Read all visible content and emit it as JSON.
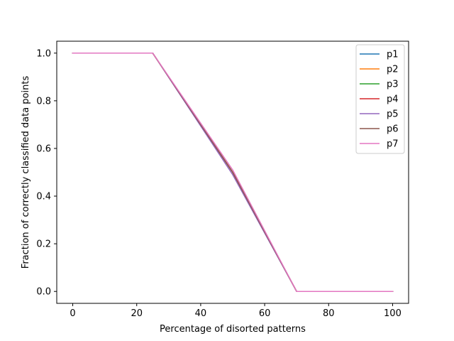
{
  "chart_data": {
    "type": "line",
    "title": "",
    "xlabel": "Percentage of disorted patterns",
    "ylabel": "Fraction of correctly classified data points",
    "xlim": [
      -5,
      105
    ],
    "ylim": [
      -0.05,
      1.05
    ],
    "xticks": [
      0,
      20,
      40,
      60,
      80,
      100
    ],
    "xtick_labels": [
      "0",
      "20",
      "40",
      "60",
      "80",
      "100"
    ],
    "yticks": [
      0.0,
      0.2,
      0.4,
      0.6,
      0.8,
      1.0
    ],
    "ytick_labels": [
      "0.0",
      "0.2",
      "0.4",
      "0.6",
      "0.8",
      "1.0"
    ],
    "grid": false,
    "legend_position": "top-right",
    "series": [
      {
        "name": "p1",
        "color": "#1f77b4",
        "x": [
          0,
          25,
          50,
          70,
          100
        ],
        "y": [
          1.0,
          1.0,
          0.5,
          0.0,
          0.0
        ]
      },
      {
        "name": "p2",
        "color": "#ff7f0e",
        "x": [
          0,
          25,
          50,
          70,
          100
        ],
        "y": [
          1.0,
          1.0,
          0.5,
          0.0,
          0.0
        ]
      },
      {
        "name": "p3",
        "color": "#2ca02c",
        "x": [
          0,
          25,
          50,
          70,
          100
        ],
        "y": [
          1.0,
          1.0,
          0.5,
          0.0,
          0.0
        ]
      },
      {
        "name": "p4",
        "color": "#d62728",
        "x": [
          0,
          25,
          50,
          70,
          100
        ],
        "y": [
          1.0,
          1.0,
          0.5,
          0.0,
          0.0
        ]
      },
      {
        "name": "p5",
        "color": "#9467bd",
        "x": [
          0,
          25,
          50,
          70,
          100
        ],
        "y": [
          1.0,
          1.0,
          0.49,
          0.0,
          0.0
        ]
      },
      {
        "name": "p6",
        "color": "#8c564b",
        "x": [
          0,
          25,
          50,
          70,
          100
        ],
        "y": [
          1.0,
          1.0,
          0.5,
          0.0,
          0.0
        ]
      },
      {
        "name": "p7",
        "color": "#e377c2",
        "x": [
          0,
          25,
          50,
          70,
          100
        ],
        "y": [
          1.0,
          1.0,
          0.51,
          0.0,
          0.0
        ]
      }
    ]
  }
}
